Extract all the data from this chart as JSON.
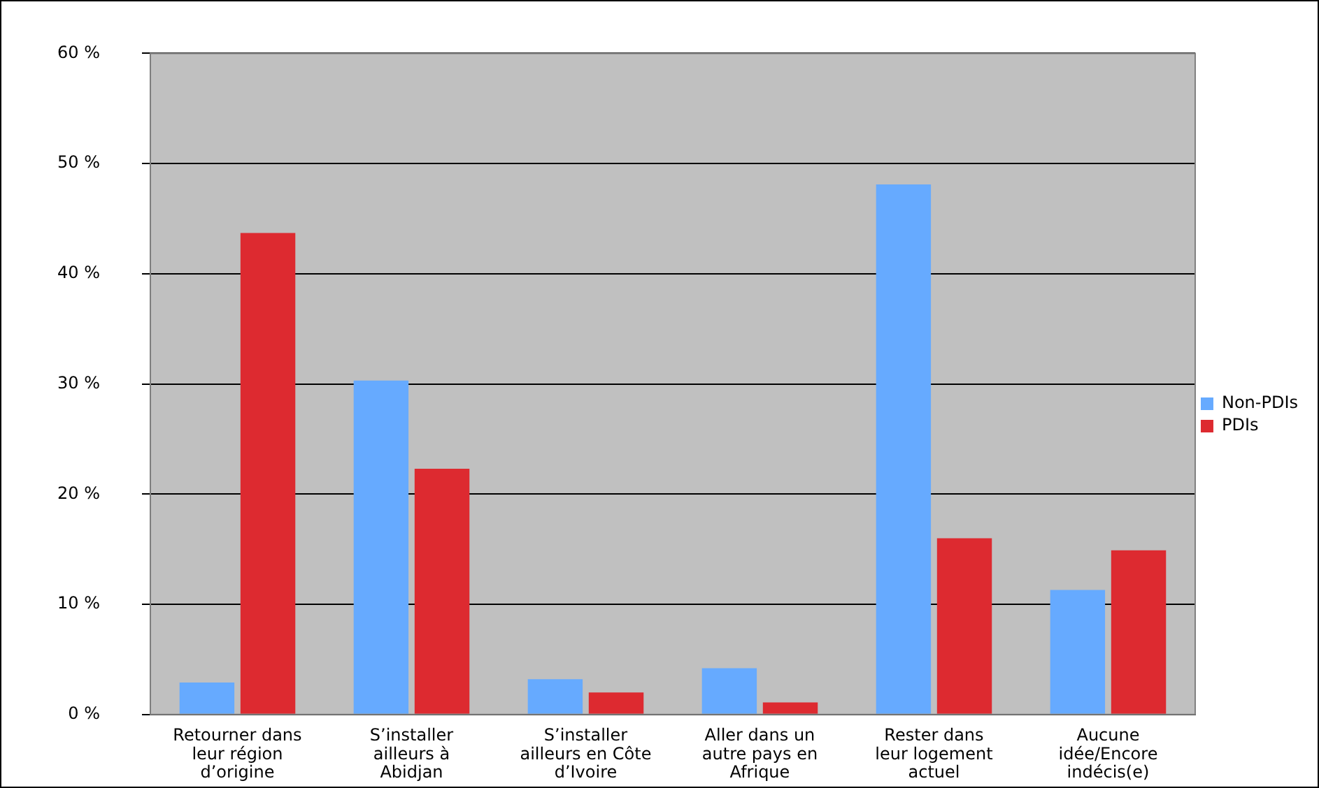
{
  "chart_data": {
    "type": "bar",
    "categories": [
      "Retourner dans leur région d’origine",
      "S’installer ailleurs à Abidjan",
      "S’installer ailleurs en Côte d’Ivoire",
      "Aller dans un autre pays en Afrique",
      "Rester dans leur logement actuel",
      "Aucune idée/Encore indécis(e)"
    ],
    "series": [
      {
        "name": "Non-PDIs",
        "color": "#66aaff",
        "values": [
          2.9,
          30.3,
          3.2,
          4.2,
          48.1,
          11.3
        ]
      },
      {
        "name": "PDIs",
        "color": "#dd2a30",
        "values": [
          43.7,
          22.3,
          2.0,
          1.1,
          16.0,
          14.9
        ]
      }
    ],
    "ylim": [
      0,
      60
    ],
    "yticks": [
      {
        "value": 0,
        "label": "0 %"
      },
      {
        "value": 10,
        "label": "10 %"
      },
      {
        "value": 20,
        "label": "20 %"
      },
      {
        "value": 30,
        "label": "30 %"
      },
      {
        "value": 40,
        "label": "40 %"
      },
      {
        "value": 50,
        "label": "50 %"
      },
      {
        "value": 60,
        "label": "60 %"
      }
    ],
    "grid": "y",
    "legend": "right"
  }
}
